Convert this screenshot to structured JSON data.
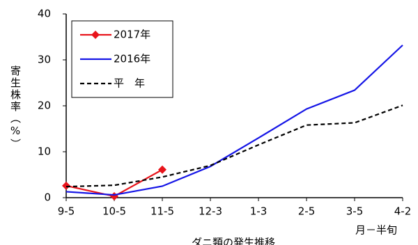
{
  "chart_data": {
    "type": "line",
    "title": "ダニ類の発生推移",
    "y_label": "寄生株率（%）",
    "x_label": "月－半旬",
    "categories": [
      "9-5",
      "10-5",
      "11-5",
      "12-3",
      "1-3",
      "2-5",
      "3-5",
      "4-2"
    ],
    "series": [
      {
        "name": "2017年",
        "color": "#e8141b",
        "style": "solid",
        "marker": "diamond",
        "values": [
          2.6,
          0.3,
          6.1,
          null,
          null,
          null,
          null,
          null
        ]
      },
      {
        "name": "2016年",
        "color": "#1414e6",
        "style": "solid",
        "marker": "none",
        "values": [
          1.3,
          0.6,
          2.5,
          6.8,
          13.0,
          19.3,
          23.4,
          33.2
        ]
      },
      {
        "name": "平　年",
        "color": "#000000",
        "style": "dashed",
        "marker": "none",
        "values": [
          2.4,
          2.7,
          4.5,
          7.0,
          11.5,
          15.8,
          16.3,
          20.1
        ]
      }
    ],
    "ylim": [
      0,
      40
    ],
    "yticks": [
      0,
      10,
      20,
      30,
      40
    ],
    "grid": false,
    "legend": "top-left"
  }
}
